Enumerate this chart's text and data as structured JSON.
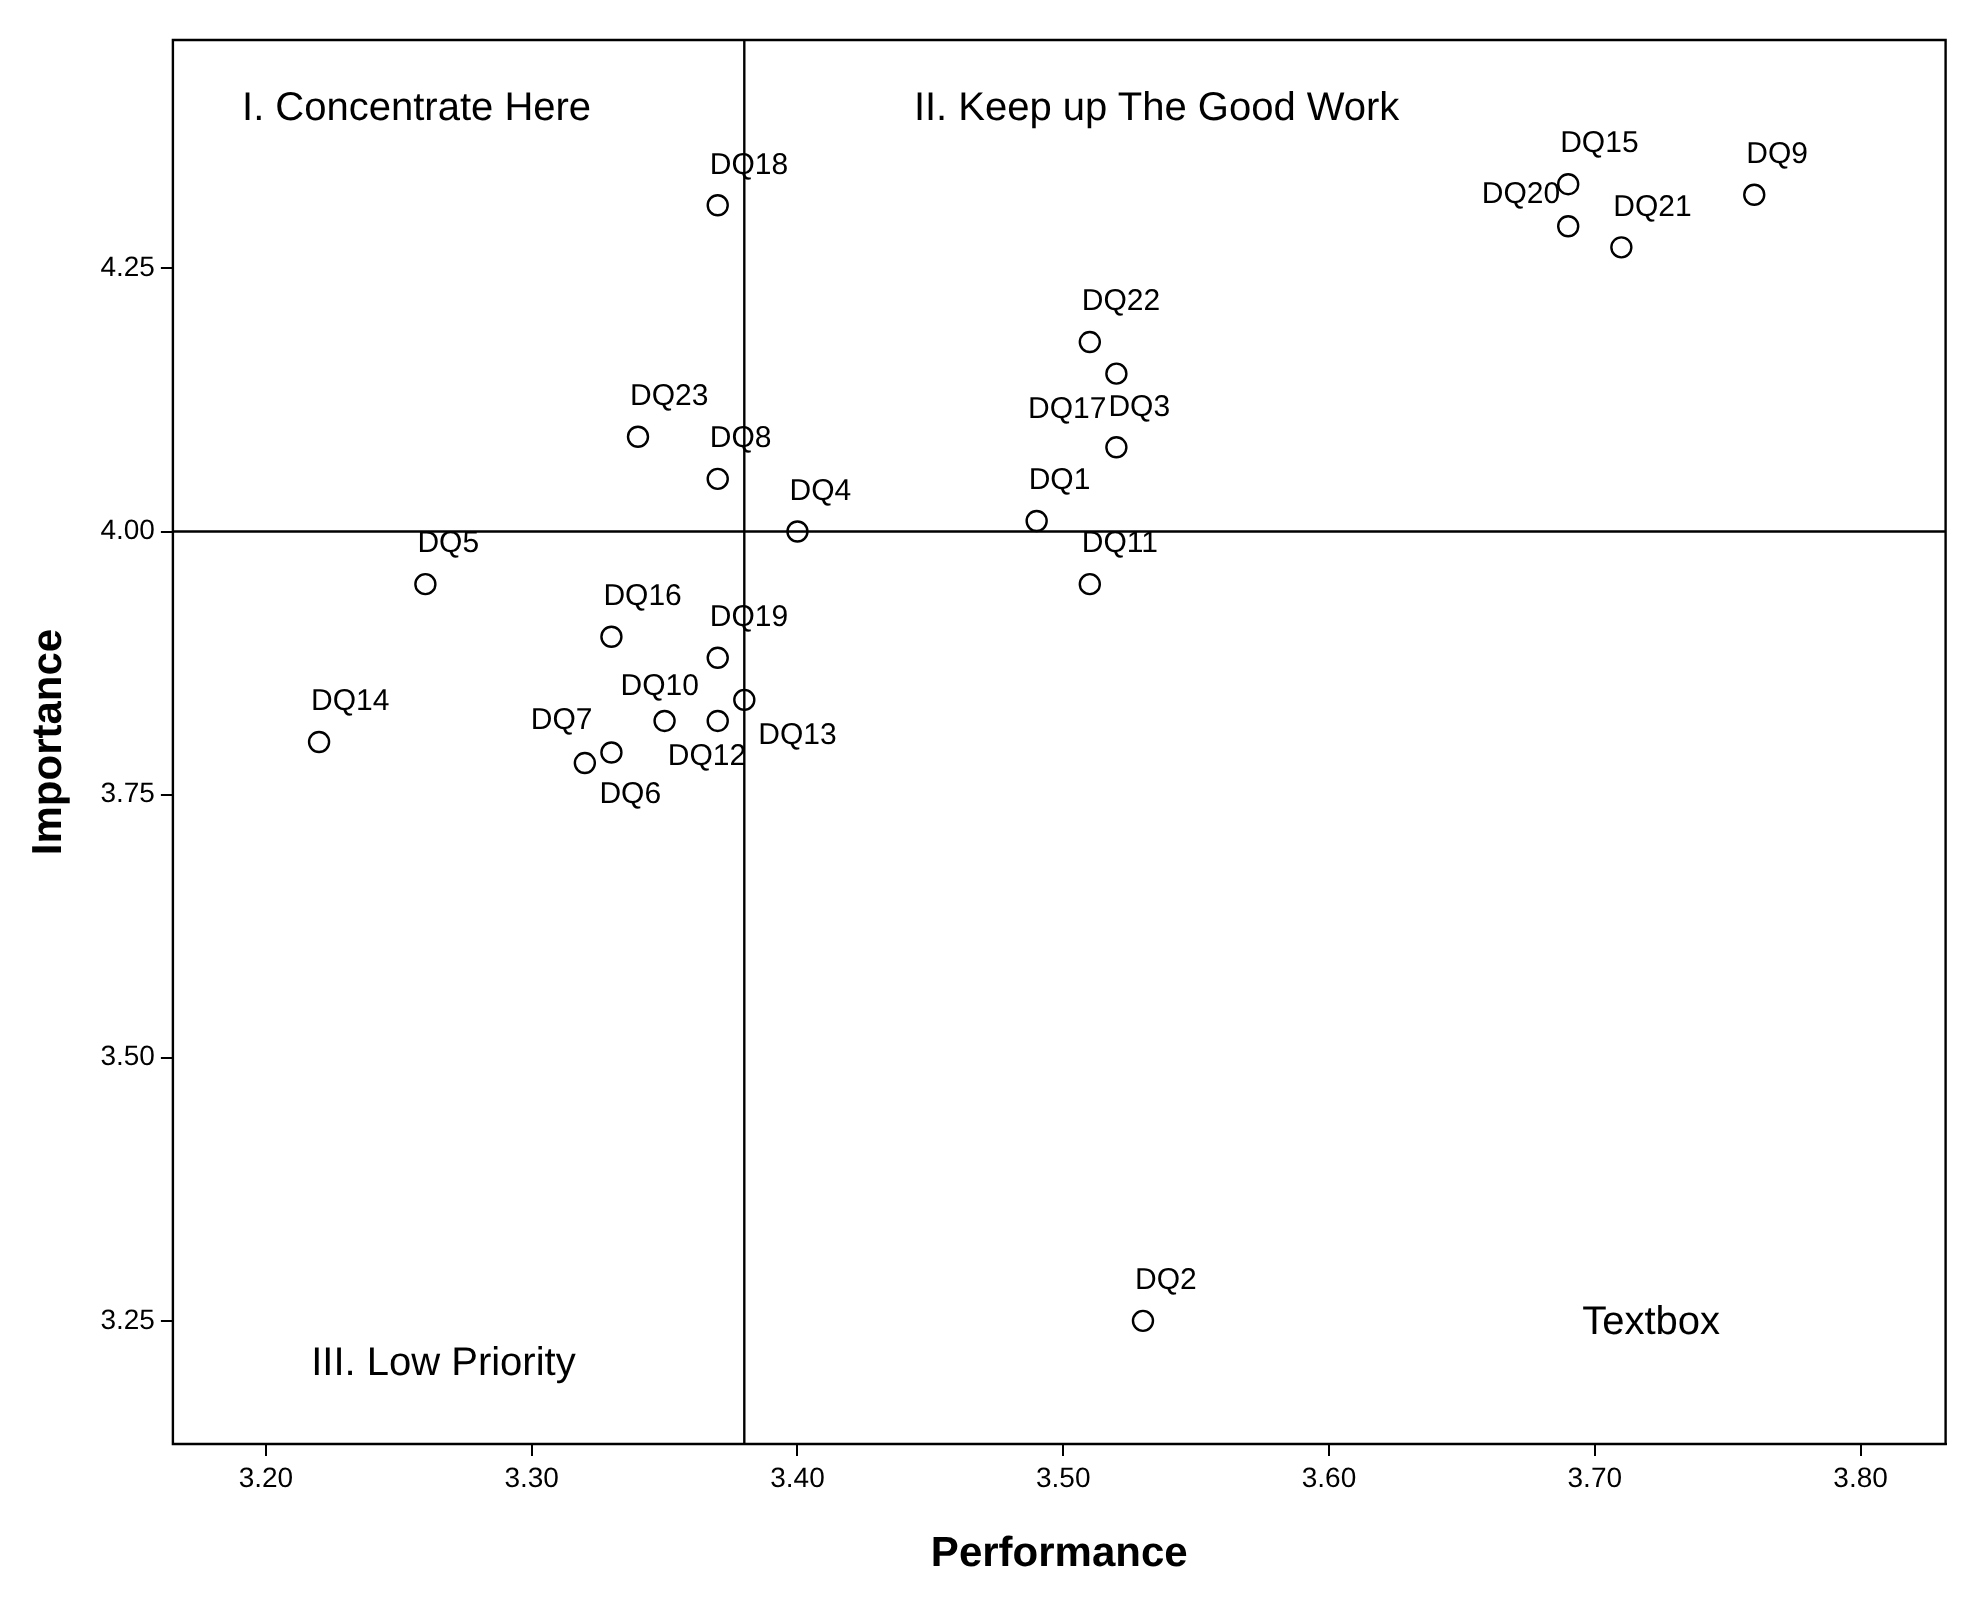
{
  "chart_data": {
    "type": "scatter",
    "xlabel": "Performance",
    "ylabel": "Importance",
    "xlim": [
      3.165,
      3.832
    ],
    "ylim": [
      3.133,
      4.467
    ],
    "xticks": [
      {
        "value": 3.2,
        "label": "3.20"
      },
      {
        "value": 3.3,
        "label": "3.30"
      },
      {
        "value": 3.4,
        "label": "3.40"
      },
      {
        "value": 3.5,
        "label": "3.50"
      },
      {
        "value": 3.6,
        "label": "3.60"
      },
      {
        "value": 3.7,
        "label": "3.70"
      },
      {
        "value": 3.8,
        "label": "3.80"
      }
    ],
    "yticks": [
      {
        "value": 3.25,
        "label": "3.25"
      },
      {
        "value": 3.5,
        "label": "3.50"
      },
      {
        "value": 3.75,
        "label": "3.75"
      },
      {
        "value": 4.0,
        "label": "4.00"
      },
      {
        "value": 4.25,
        "label": "4.25"
      }
    ],
    "series": [
      {
        "color": "#000000",
        "x": [
          3.49,
          3.53,
          3.52,
          3.4,
          3.26,
          3.33,
          3.32,
          3.37,
          3.76,
          3.35,
          3.51,
          3.37,
          3.38,
          3.22,
          3.69,
          3.33,
          3.52,
          3.37,
          3.37,
          3.69,
          3.71,
          3.51,
          3.34
        ],
        "values": [
          4.01,
          3.25,
          4.08,
          4.0,
          3.95,
          3.79,
          3.78,
          4.05,
          4.32,
          3.82,
          3.95,
          3.82,
          3.84,
          3.8,
          4.33,
          3.9,
          4.15,
          4.31,
          3.88,
          4.29,
          4.27,
          4.18,
          4.09
        ],
        "value_labels": [
          "DQ1",
          "DQ2",
          "DQ3",
          "DQ4",
          "DQ5",
          "DQ6",
          "DQ7",
          "DQ8",
          "DQ9",
          "DQ10",
          "DQ11",
          "DQ12",
          "DQ13",
          "DQ14",
          "DQ15",
          "DQ16",
          "DQ17",
          "DQ18",
          "DQ19",
          "DQ20",
          "DQ21",
          "DQ22",
          "DQ23"
        ]
      }
    ],
    "ref_lines": [
      {
        "axis": "x",
        "value": 3.38,
        "color": "#000000"
      },
      {
        "axis": "y",
        "value": 4.0,
        "color": "#000000"
      }
    ],
    "annotations": [
      "I. Concentrate Here",
      "II. Keep up The Good Work",
      "III. Low Priority",
      "Textbox"
    ],
    "marker": "circle",
    "grid": false,
    "legend": false
  }
}
